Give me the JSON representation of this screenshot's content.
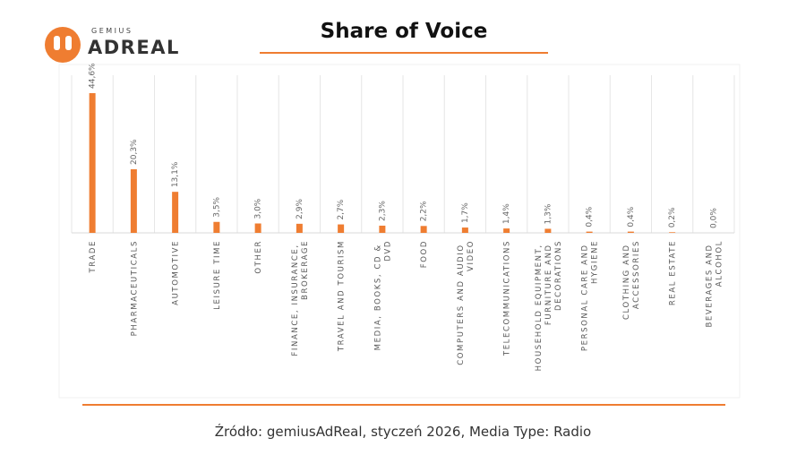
{
  "logo": {
    "brand": "GEMIUS",
    "product": "ADREAL"
  },
  "chart_data": {
    "type": "bar",
    "title": "Share of Voice",
    "categories": [
      "TRADE",
      "PHARMACEUTICALS",
      "AUTOMOTIVE",
      "LEISURE TIME",
      "OTHER",
      "FINANCE, INSURANCE, BROKERAGE",
      "TRAVEL AND TOURISM",
      "MEDIA, BOOKS, CD & DVD",
      "FOOD",
      "COMPUTERS AND AUDIO VIDEO",
      "TELECOMMUNICATIONS",
      "HOUSEHOLD EQUIPMENT, FURNITURE AND DECORATIONS",
      "PERSONAL CARE AND HYGIENE",
      "CLOTHING AND ACCESSORIES",
      "REAL ESTATE",
      "BEVERAGES AND ALCOHOL"
    ],
    "values": [
      44.6,
      20.3,
      13.1,
      3.5,
      3.0,
      2.9,
      2.7,
      2.3,
      2.2,
      1.7,
      1.4,
      1.3,
      0.4,
      0.4,
      0.2,
      0.0
    ],
    "value_labels": [
      "44,6%",
      "20,3%",
      "13,1%",
      "3,5%",
      "3,0%",
      "2,9%",
      "2,7%",
      "2,3%",
      "2,2%",
      "1,7%",
      "1,4%",
      "1,3%",
      "0,4%",
      "0,4%",
      "0,2%",
      "0,0%"
    ],
    "color": "#ef7d31",
    "source": "Źródło: gemiusAdReal, styczeń 2026, Media Type: Radio"
  }
}
